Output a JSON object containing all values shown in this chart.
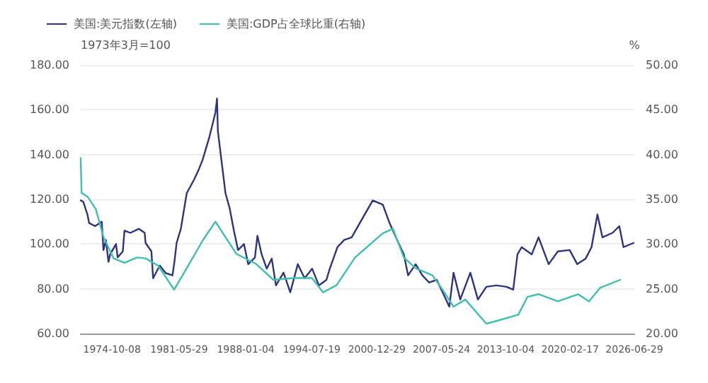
{
  "chart_data": {
    "type": "line",
    "ylabel": "1973年3月=100",
    "y2label": "%",
    "legend": "top left",
    "grid": "y",
    "marker": "none",
    "line_style": "solid",
    "xlim": [
      "1971-09",
      "2026-06-29"
    ],
    "xticks": [
      "1974-10-08",
      "1981-05-29",
      "1988-01-04",
      "1994-07-19",
      "2000-12-29",
      "2007-05-24",
      "2013-10-04",
      "2020-02-17",
      "2026-06-29"
    ],
    "ylim": [
      60,
      180
    ],
    "yticks": [
      {
        "value": 60,
        "label": "60.00"
      },
      {
        "value": 80,
        "label": "80.00"
      },
      {
        "value": 100,
        "label": "100.00"
      },
      {
        "value": 120,
        "label": "120.00"
      },
      {
        "value": 140,
        "label": "140.00"
      },
      {
        "value": 160,
        "label": "160.00"
      },
      {
        "value": 180,
        "label": "180.00"
      }
    ],
    "y2lim": [
      20,
      50
    ],
    "y2ticks": [
      {
        "value": 20,
        "label": "20.00"
      },
      {
        "value": 25,
        "label": "25.00"
      },
      {
        "value": 30,
        "label": "30.00"
      },
      {
        "value": 35,
        "label": "35.00"
      },
      {
        "value": 40,
        "label": "40.00"
      },
      {
        "value": 45,
        "label": "45.00"
      },
      {
        "value": 50,
        "label": "50.00"
      }
    ],
    "series": [
      {
        "name": "美国:美元指数(左轴)",
        "color": "#2e3580",
        "x": [
          "1971-09",
          "1971-12",
          "1972-05",
          "1972-07",
          "1973-02",
          "1973-10",
          "1973-12",
          "1974-03",
          "1974-06",
          "1974-08",
          "1975-03",
          "1975-05",
          "1975-11",
          "1976-01",
          "1976-08",
          "1977-06",
          "1978-01",
          "1978-02",
          "1978-09",
          "1978-11",
          "1979-07",
          "1980-02",
          "1980-10",
          "1980-12",
          "1981-03",
          "1981-08",
          "1982-03",
          "1982-12",
          "1983-05",
          "1983-10",
          "1984-06",
          "1985-01",
          "1985-03",
          "1985-04",
          "1985-09",
          "1986-01",
          "1986-06",
          "1986-11",
          "1987-04",
          "1987-11",
          "1988-04",
          "1988-12",
          "1989-03",
          "1989-08",
          "1990-02",
          "1990-08",
          "1991-01",
          "1991-10",
          "1992-06",
          "1993-03",
          "1993-11",
          "1994-08",
          "1995-04",
          "1996-01",
          "1996-05",
          "1997-02",
          "1997-10",
          "1998-07",
          "2000-08",
          "2001-08",
          "2002-04",
          "2003-01",
          "2003-09",
          "2004-02",
          "2004-11",
          "2005-07",
          "2006-03",
          "2006-12",
          "2007-08",
          "2008-03",
          "2008-08",
          "2009-04",
          "2010-04",
          "2011-01",
          "2011-11",
          "2012-11",
          "2013-11",
          "2014-07",
          "2014-12",
          "2015-05",
          "2016-05",
          "2017-01",
          "2018-01",
          "2018-12",
          "2020-02",
          "2020-11",
          "2021-09",
          "2022-04",
          "2022-11",
          "2023-05",
          "2024-05",
          "2025-01",
          "2025-06",
          "2026-06"
        ],
        "values": [
          119.5,
          118.9,
          113.2,
          109.4,
          108,
          110,
          97.3,
          101.8,
          92,
          95.4,
          100,
          94,
          96.7,
          106,
          105,
          106.8,
          105,
          100.5,
          96.7,
          84.7,
          90.4,
          87,
          86,
          91,
          100.5,
          106.8,
          122.7,
          129,
          133,
          137.8,
          148,
          158.7,
          165,
          150.5,
          135,
          122.7,
          116,
          106,
          97.3,
          100,
          91,
          94,
          103.7,
          95.4,
          89,
          93.5,
          81.5,
          87.2,
          78.4,
          91,
          84.7,
          89,
          81.5,
          84,
          89,
          98.6,
          101.8,
          103,
          119.5,
          117.6,
          109.4,
          101.8,
          95.4,
          86,
          91,
          86,
          82.8,
          84,
          77.7,
          72,
          87.2,
          75.2,
          87.2,
          75.2,
          80.9,
          81.5,
          80.9,
          79.6,
          95.4,
          98.6,
          95.4,
          103,
          91,
          96.7,
          97.3,
          91,
          93.5,
          98.6,
          113.2,
          103,
          105,
          108,
          98.6,
          100.5
        ]
      },
      {
        "name": "美国:GDP占全球比重(右轴)",
        "color": "#3fbfae",
        "axis": "y2",
        "x": [
          "1971-09",
          "1971-10",
          "1972-05",
          "1973-03",
          "1973-12",
          "1974-12",
          "1976-01",
          "1977-04",
          "1978-02",
          "1979-05",
          "1980-12",
          "1982-03",
          "1983-10",
          "1985-01",
          "1987-02",
          "1989-01",
          "1990-10",
          "1992-10",
          "1994-08",
          "1995-09",
          "1997-01",
          "1998-11",
          "2001-08",
          "2002-08",
          "2003-09",
          "2004-11",
          "2006-07",
          "2007-07",
          "2008-08",
          "2009-10",
          "2011-11",
          "2012-11",
          "2015-01",
          "2015-12",
          "2017-01",
          "2018-12",
          "2020-12",
          "2022-01",
          "2023-02",
          "2025-02"
        ],
        "values": [
          39.6,
          35.7,
          35.3,
          33.9,
          30.8,
          28.4,
          27.9,
          28.5,
          28.4,
          27.6,
          24.9,
          27.3,
          30.4,
          32.5,
          28.9,
          27.8,
          26,
          26.2,
          26.2,
          24.6,
          25.4,
          28.5,
          31.2,
          31.7,
          28.5,
          27.3,
          26.5,
          24.9,
          23,
          23.8,
          21.1,
          21.4,
          22.1,
          24.1,
          24.4,
          23.6,
          24.4,
          23.6,
          25.1,
          26
        ]
      }
    ]
  }
}
